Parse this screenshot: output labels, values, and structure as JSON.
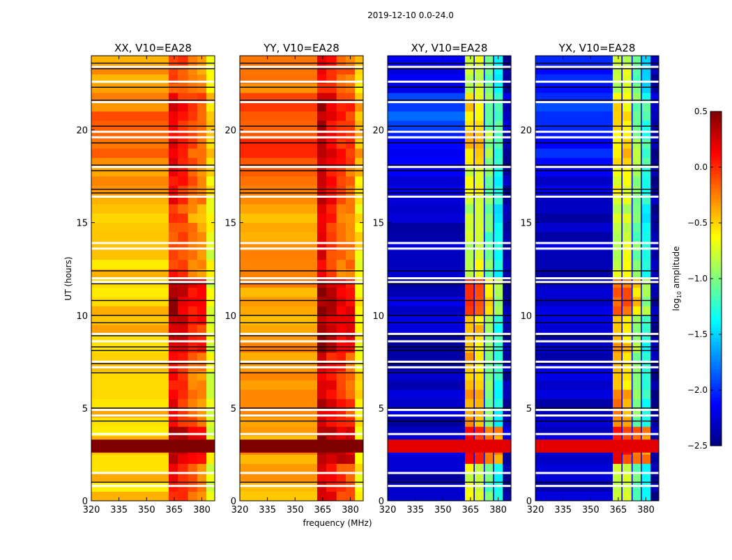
{
  "chart_data": {
    "type": "heatmap",
    "title": "2019-12-10 0.0-24.0",
    "xlabel": "frequency (MHz)",
    "ylabel": "UT (hours)",
    "xlim": [
      320,
      387
    ],
    "ylim": [
      0,
      24
    ],
    "xticks": [
      320,
      335,
      350,
      365,
      380
    ],
    "xtick_labels": [
      "320",
      "335",
      "350",
      "365",
      "380"
    ],
    "yticks": [
      0,
      5,
      10,
      15,
      20
    ],
    "ytick_labels": [
      "0",
      "5",
      "10",
      "15",
      "20"
    ],
    "freq_bin_edges": [
      320,
      362,
      367,
      372.5,
      377.5,
      382.5,
      387
    ],
    "time_bin_edges": [
      0,
      2,
      4,
      6,
      8,
      10,
      12,
      14,
      16,
      18,
      20,
      22,
      24
    ],
    "colorbar": {
      "label": "log10 amplitude",
      "label_main": "log",
      "label_sub": "10",
      "label_rest": " amplitude",
      "colormap": "jet",
      "range": [
        -2.5,
        0.5
      ],
      "ticks": [
        0.5,
        0.0,
        -0.5,
        -1.0,
        -1.5,
        -2.0,
        -2.5
      ],
      "tick_labels": [
        "0.5",
        "0.0",
        "−0.5",
        "−1.0",
        "−1.5",
        "−2.0",
        "−2.5"
      ]
    },
    "flagged_hours_white": [
      23.4,
      22.6,
      21.5,
      19.9,
      19.6,
      18.0,
      16.4,
      13.9,
      13.6,
      12.0,
      11.8,
      9.0,
      8.6,
      7.5,
      7.2,
      4.9,
      4.6,
      3.6,
      1.5,
      0.8
    ],
    "flagged_hours_black": [
      23.6,
      23.3,
      22.3,
      21.6,
      20.2,
      19.3,
      18.1,
      17.8,
      16.8,
      16.6,
      12.4,
      11.7,
      10.8,
      10.0,
      9.6,
      8.9,
      8.3,
      8.1,
      7.4,
      6.9,
      5.0,
      4.3,
      1.0
    ],
    "panels": [
      {
        "title": "XX, V10=EA28",
        "burst": {
          "hours": [
            2.6,
            3.3
          ],
          "value": 0.5
        },
        "values": [
          [
            -0.5,
            0.1,
            0.0,
            -0.2,
            -0.3,
            -0.7
          ],
          [
            -0.5,
            0.35,
            0.3,
            0.2,
            0.1,
            -0.7
          ],
          [
            -0.45,
            0.15,
            0.05,
            -0.15,
            -0.25,
            -0.7
          ],
          [
            -0.4,
            0.1,
            0.0,
            -0.2,
            -0.3,
            -0.7
          ],
          [
            -0.45,
            0.3,
            0.2,
            0.1,
            0.0,
            -0.7
          ],
          [
            -0.45,
            0.35,
            0.25,
            0.15,
            0.05,
            -0.7
          ],
          [
            -0.45,
            0.0,
            -0.1,
            -0.3,
            -0.35,
            -0.7
          ],
          [
            -0.5,
            -0.05,
            -0.1,
            -0.3,
            -0.35,
            -0.7
          ],
          [
            -0.3,
            0.1,
            0.0,
            -0.2,
            -0.25,
            -0.6
          ],
          [
            -0.2,
            0.15,
            0.05,
            -0.1,
            -0.2,
            -0.5
          ],
          [
            -0.2,
            0.15,
            0.05,
            -0.1,
            -0.15,
            -0.5
          ],
          [
            -0.35,
            -0.05,
            -0.1,
            -0.25,
            -0.3,
            -0.6
          ]
        ]
      },
      {
        "title": "YY, V10=EA28",
        "burst": {
          "hours": [
            2.6,
            3.3
          ],
          "value": 0.5
        },
        "values": [
          [
            -0.4,
            0.25,
            0.1,
            -0.05,
            -0.15,
            -0.6
          ],
          [
            -0.35,
            0.4,
            0.35,
            0.3,
            0.2,
            -0.6
          ],
          [
            -0.35,
            0.3,
            0.15,
            0.0,
            -0.1,
            -0.6
          ],
          [
            -0.3,
            0.25,
            0.1,
            -0.05,
            -0.15,
            -0.6
          ],
          [
            -0.35,
            0.4,
            0.3,
            0.2,
            0.1,
            -0.6
          ],
          [
            -0.35,
            0.4,
            0.3,
            0.2,
            0.1,
            -0.6
          ],
          [
            -0.35,
            0.2,
            0.0,
            -0.2,
            -0.25,
            -0.6
          ],
          [
            -0.4,
            0.15,
            0.0,
            -0.2,
            -0.25,
            -0.6
          ],
          [
            -0.2,
            0.25,
            0.1,
            -0.1,
            -0.15,
            -0.5
          ],
          [
            -0.1,
            0.3,
            0.15,
            0.0,
            -0.1,
            -0.4
          ],
          [
            -0.1,
            0.35,
            0.15,
            0.0,
            -0.05,
            -0.4
          ],
          [
            -0.25,
            0.1,
            0.0,
            -0.15,
            -0.2,
            -0.5
          ]
        ]
      },
      {
        "title": "XY, V10=EA28",
        "burst": {
          "hours": [
            2.6,
            3.3
          ],
          "value": 0.2
        },
        "values": [
          [
            -2.3,
            -0.7,
            -0.8,
            -1.1,
            -1.4,
            -2.4
          ],
          [
            -2.2,
            0.1,
            0.0,
            -0.2,
            -0.3,
            -2.3
          ],
          [
            -2.3,
            -0.3,
            -0.4,
            -1.0,
            -1.3,
            -2.4
          ],
          [
            -2.3,
            -0.4,
            -0.6,
            -1.0,
            -1.3,
            -2.4
          ],
          [
            -2.3,
            -0.4,
            -0.5,
            -0.9,
            -1.3,
            -2.4
          ],
          [
            -2.3,
            -0.1,
            -0.2,
            -0.5,
            -0.9,
            -2.4
          ],
          [
            -2.3,
            -0.8,
            -0.7,
            -1.0,
            -1.3,
            -2.4
          ],
          [
            -2.3,
            -0.8,
            -0.8,
            -1.1,
            -1.4,
            -2.4
          ],
          [
            -2.2,
            -0.7,
            -0.7,
            -1.0,
            -1.3,
            -2.4
          ],
          [
            -2.1,
            -0.5,
            -0.5,
            -0.9,
            -1.2,
            -2.4
          ],
          [
            -1.9,
            -0.5,
            -0.6,
            -1.0,
            -1.2,
            -2.3
          ],
          [
            -2.1,
            -0.8,
            -0.8,
            -1.1,
            -1.4,
            -2.4
          ]
        ]
      },
      {
        "title": "YX, V10=EA28",
        "burst": {
          "hours": [
            2.6,
            3.3
          ],
          "value": 0.2
        },
        "values": [
          [
            -2.3,
            -0.7,
            -0.8,
            -1.1,
            -1.4,
            -2.4
          ],
          [
            -2.2,
            0.1,
            0.0,
            -0.2,
            -0.3,
            -2.3
          ],
          [
            -2.3,
            -0.3,
            -0.4,
            -1.0,
            -1.3,
            -2.4
          ],
          [
            -2.3,
            -0.4,
            -0.6,
            -1.0,
            -1.3,
            -2.4
          ],
          [
            -2.3,
            -0.4,
            -0.5,
            -0.9,
            -1.3,
            -2.4
          ],
          [
            -2.3,
            -0.1,
            -0.2,
            -0.5,
            -0.9,
            -2.4
          ],
          [
            -2.3,
            -0.8,
            -0.7,
            -1.0,
            -1.3,
            -2.4
          ],
          [
            -2.3,
            -0.8,
            -0.8,
            -1.1,
            -1.4,
            -2.4
          ],
          [
            -2.2,
            -0.7,
            -0.7,
            -1.0,
            -1.3,
            -2.4
          ],
          [
            -2.1,
            -0.5,
            -0.5,
            -0.9,
            -1.2,
            -2.4
          ],
          [
            -1.9,
            -0.5,
            -0.6,
            -1.0,
            -1.2,
            -2.3
          ],
          [
            -2.1,
            -0.8,
            -0.8,
            -1.1,
            -1.4,
            -2.4
          ]
        ]
      }
    ]
  }
}
